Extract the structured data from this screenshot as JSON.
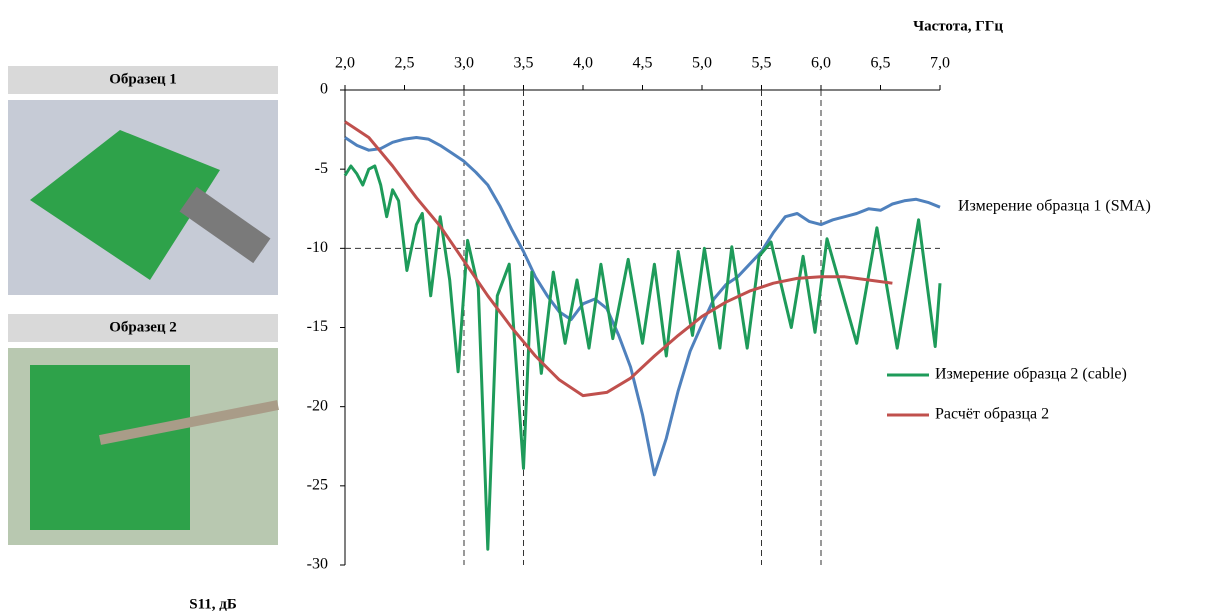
{
  "photos": [
    {
      "caption": "Образец 1"
    },
    {
      "caption": "Образец 2"
    }
  ],
  "chart_data": {
    "type": "line",
    "x_label": "Частота, ГГц",
    "y_label": "S11, дБ",
    "xlim": [
      2,
      7
    ],
    "ylim": [
      -30,
      0
    ],
    "xticks": [
      {
        "value": 2,
        "label": "2,0"
      },
      {
        "value": 2.5,
        "label": "2,5"
      },
      {
        "value": 3,
        "label": "3,0"
      },
      {
        "value": 3.5,
        "label": "3,5"
      },
      {
        "value": 4,
        "label": "4,0"
      },
      {
        "value": 4.5,
        "label": "4,5"
      },
      {
        "value": 5,
        "label": "5,0"
      },
      {
        "value": 5.5,
        "label": "5,5"
      },
      {
        "value": 6,
        "label": "6,0"
      },
      {
        "value": 6.5,
        "label": "6,5"
      },
      {
        "value": 7,
        "label": "7,0"
      }
    ],
    "yticks": [
      0,
      -5,
      -10,
      -15,
      -20,
      -25,
      -30
    ],
    "reference_lines": {
      "x": [
        3,
        3.5,
        5.5,
        6
      ],
      "y": [
        -10
      ]
    },
    "series": [
      {
        "name": "Измерение образца 1 (SMA)",
        "color": "#4f81bd",
        "x": [
          2.0,
          2.1,
          2.2,
          2.3,
          2.4,
          2.5,
          2.6,
          2.7,
          2.8,
          2.9,
          3.0,
          3.1,
          3.2,
          3.3,
          3.4,
          3.5,
          3.6,
          3.7,
          3.8,
          3.9,
          4.0,
          4.1,
          4.2,
          4.3,
          4.4,
          4.5,
          4.6,
          4.7,
          4.8,
          4.9,
          5.0,
          5.1,
          5.2,
          5.3,
          5.4,
          5.5,
          5.6,
          5.7,
          5.8,
          5.9,
          6.0,
          6.1,
          6.2,
          6.3,
          6.4,
          6.5,
          6.6,
          6.7,
          6.8,
          6.9,
          7.0
        ],
        "values": [
          -3,
          -3.5,
          -3.8,
          -3.7,
          -3.3,
          -3.1,
          -3.0,
          -3.1,
          -3.5,
          -4.0,
          -4.5,
          -5.2,
          -6.0,
          -7.3,
          -8.8,
          -10.2,
          -11.8,
          -13.0,
          -14.0,
          -14.5,
          -13.5,
          -13.2,
          -13.8,
          -15.5,
          -17.5,
          -20.5,
          -24.3,
          -22,
          -19,
          -16.5,
          -14.8,
          -13.2,
          -12.3,
          -11.8,
          -11.0,
          -10.2,
          -9.0,
          -8.0,
          -7.8,
          -8.3,
          -8.5,
          -8.2,
          -8.0,
          -7.8,
          -7.5,
          -7.6,
          -7.2,
          -7.0,
          -6.9,
          -7.1,
          -7.4
        ]
      },
      {
        "name": "Измерение образца 2 (cable)",
        "color": "#1e9b5a",
        "x": [
          2.0,
          2.05,
          2.1,
          2.15,
          2.2,
          2.25,
          2.3,
          2.35,
          2.4,
          2.45,
          2.52,
          2.6,
          2.65,
          2.72,
          2.8,
          2.88,
          2.95,
          3.03,
          3.12,
          3.2,
          3.28,
          3.38,
          3.5,
          3.57,
          3.65,
          3.75,
          3.85,
          3.95,
          4.05,
          4.15,
          4.25,
          4.38,
          4.5,
          4.6,
          4.7,
          4.8,
          4.92,
          5.02,
          5.15,
          5.25,
          5.38,
          5.48,
          5.58,
          5.75,
          5.85,
          5.95,
          6.05,
          6.3,
          6.47,
          6.64,
          6.82,
          6.96,
          7.0
        ],
        "values": [
          -5.4,
          -4.8,
          -5.3,
          -6.0,
          -5.0,
          -4.8,
          -6.0,
          -8.0,
          -6.3,
          -7.0,
          -11.4,
          -8.5,
          -7.8,
          -13.0,
          -8.0,
          -12.0,
          -17.8,
          -9.5,
          -12.5,
          -29.0,
          -13.0,
          -11.0,
          -23.9,
          -11.5,
          -17.9,
          -11.5,
          -16.0,
          -12.0,
          -16.3,
          -11.0,
          -15.7,
          -10.7,
          -16.0,
          -11.0,
          -16.8,
          -10.2,
          -15.5,
          -10.0,
          -16.3,
          -9.9,
          -16.3,
          -10.5,
          -9.6,
          -15.0,
          -10.5,
          -15.3,
          -9.4,
          -16.0,
          -8.7,
          -16.3,
          -8.2,
          -16.2,
          -12.2
        ]
      },
      {
        "name": "Расчёт образца 2",
        "color": "#c0504d",
        "x": [
          2.0,
          2.2,
          2.4,
          2.6,
          2.8,
          3.0,
          3.2,
          3.4,
          3.6,
          3.8,
          4.0,
          4.2,
          4.4,
          4.6,
          4.8,
          5.0,
          5.2,
          5.4,
          5.6,
          5.8,
          6.0,
          6.2,
          6.4,
          6.6
        ],
        "values": [
          -2.0,
          -3.0,
          -4.8,
          -6.8,
          -8.6,
          -10.8,
          -13.0,
          -15.0,
          -16.8,
          -18.3,
          -19.3,
          -19.1,
          -18.2,
          -16.8,
          -15.5,
          -14.3,
          -13.4,
          -12.7,
          -12.2,
          -11.9,
          -11.8,
          -11.8,
          -12.0,
          -12.2
        ]
      }
    ]
  }
}
